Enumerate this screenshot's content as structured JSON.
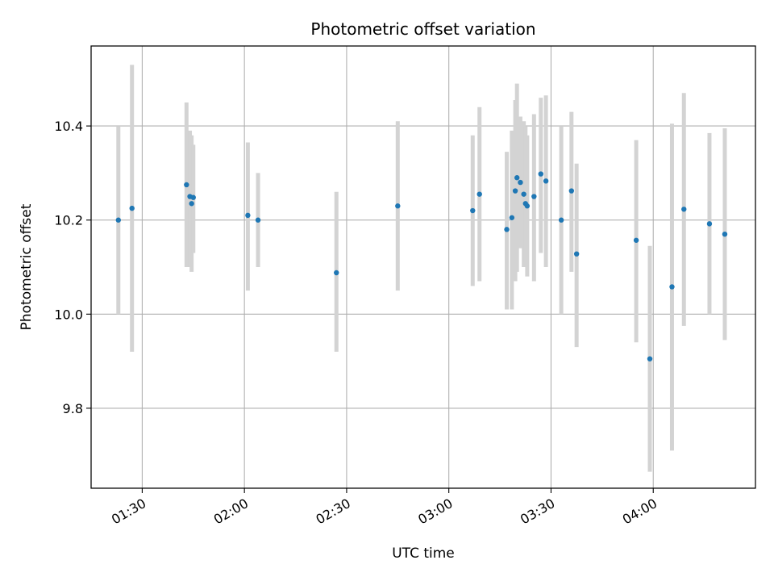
{
  "chart_data": {
    "type": "scatter",
    "title": "Photometric offset variation",
    "xlabel": "UTC time",
    "ylabel": "Photometric offset",
    "grid": true,
    "xlim": [
      "01:15",
      "04:30"
    ],
    "ylim": [
      9.63,
      10.57
    ],
    "x_ticks": [
      "01:30",
      "02:00",
      "02:30",
      "03:00",
      "03:30",
      "04:00"
    ],
    "y_ticks": [
      "9.8",
      "10.0",
      "10.2",
      "10.4"
    ],
    "colors": {
      "points": "#1f77b4",
      "errorbars": "#d3d3d3",
      "grid": "#b0b0b0"
    },
    "points": [
      {
        "t": "01:23",
        "y": 10.2,
        "lo": 10.0,
        "hi": 10.4
      },
      {
        "t": "01:27",
        "y": 10.225,
        "lo": 9.92,
        "hi": 10.53
      },
      {
        "t": "01:43",
        "y": 10.275,
        "lo": 10.1,
        "hi": 10.45
      },
      {
        "t": "01:44",
        "y": 10.25,
        "lo": 10.1,
        "hi": 10.39
      },
      {
        "t": "01:44.5",
        "y": 10.235,
        "lo": 10.09,
        "hi": 10.38
      },
      {
        "t": "01:45",
        "y": 10.248,
        "lo": 10.13,
        "hi": 10.36
      },
      {
        "t": "02:01",
        "y": 10.21,
        "lo": 10.05,
        "hi": 10.365
      },
      {
        "t": "02:04",
        "y": 10.2,
        "lo": 10.1,
        "hi": 10.3
      },
      {
        "t": "02:27",
        "y": 10.088,
        "lo": 9.92,
        "hi": 10.26
      },
      {
        "t": "02:45",
        "y": 10.23,
        "lo": 10.05,
        "hi": 10.41
      },
      {
        "t": "03:07",
        "y": 10.22,
        "lo": 10.06,
        "hi": 10.38
      },
      {
        "t": "03:09",
        "y": 10.255,
        "lo": 10.07,
        "hi": 10.44
      },
      {
        "t": "03:17",
        "y": 10.18,
        "lo": 10.01,
        "hi": 10.345
      },
      {
        "t": "03:18.5",
        "y": 10.205,
        "lo": 10.01,
        "hi": 10.39
      },
      {
        "t": "03:19.5",
        "y": 10.262,
        "lo": 10.07,
        "hi": 10.455
      },
      {
        "t": "03:20",
        "y": 10.29,
        "lo": 10.09,
        "hi": 10.49
      },
      {
        "t": "03:21",
        "y": 10.28,
        "lo": 10.14,
        "hi": 10.42
      },
      {
        "t": "03:22",
        "y": 10.255,
        "lo": 10.1,
        "hi": 10.41
      },
      {
        "t": "03:22.5",
        "y": 10.235,
        "lo": 10.11,
        "hi": 10.4
      },
      {
        "t": "03:23",
        "y": 10.23,
        "lo": 10.08,
        "hi": 10.38
      },
      {
        "t": "03:25",
        "y": 10.25,
        "lo": 10.07,
        "hi": 10.425
      },
      {
        "t": "03:27",
        "y": 10.298,
        "lo": 10.13,
        "hi": 10.46
      },
      {
        "t": "03:28.5",
        "y": 10.283,
        "lo": 10.1,
        "hi": 10.465
      },
      {
        "t": "03:33",
        "y": 10.2,
        "lo": 10.0,
        "hi": 10.4
      },
      {
        "t": "03:36",
        "y": 10.262,
        "lo": 10.09,
        "hi": 10.43
      },
      {
        "t": "03:37.5",
        "y": 10.128,
        "lo": 9.93,
        "hi": 10.32
      },
      {
        "t": "03:55",
        "y": 10.157,
        "lo": 9.94,
        "hi": 10.37
      },
      {
        "t": "03:59",
        "y": 9.905,
        "lo": 9.665,
        "hi": 10.145
      },
      {
        "t": "04:05.5",
        "y": 10.058,
        "lo": 9.71,
        "hi": 10.405
      },
      {
        "t": "04:09",
        "y": 10.223,
        "lo": 9.975,
        "hi": 10.47
      },
      {
        "t": "04:16.5",
        "y": 10.192,
        "lo": 10.0,
        "hi": 10.385
      },
      {
        "t": "04:21",
        "y": 10.17,
        "lo": 9.945,
        "hi": 10.395
      }
    ]
  }
}
